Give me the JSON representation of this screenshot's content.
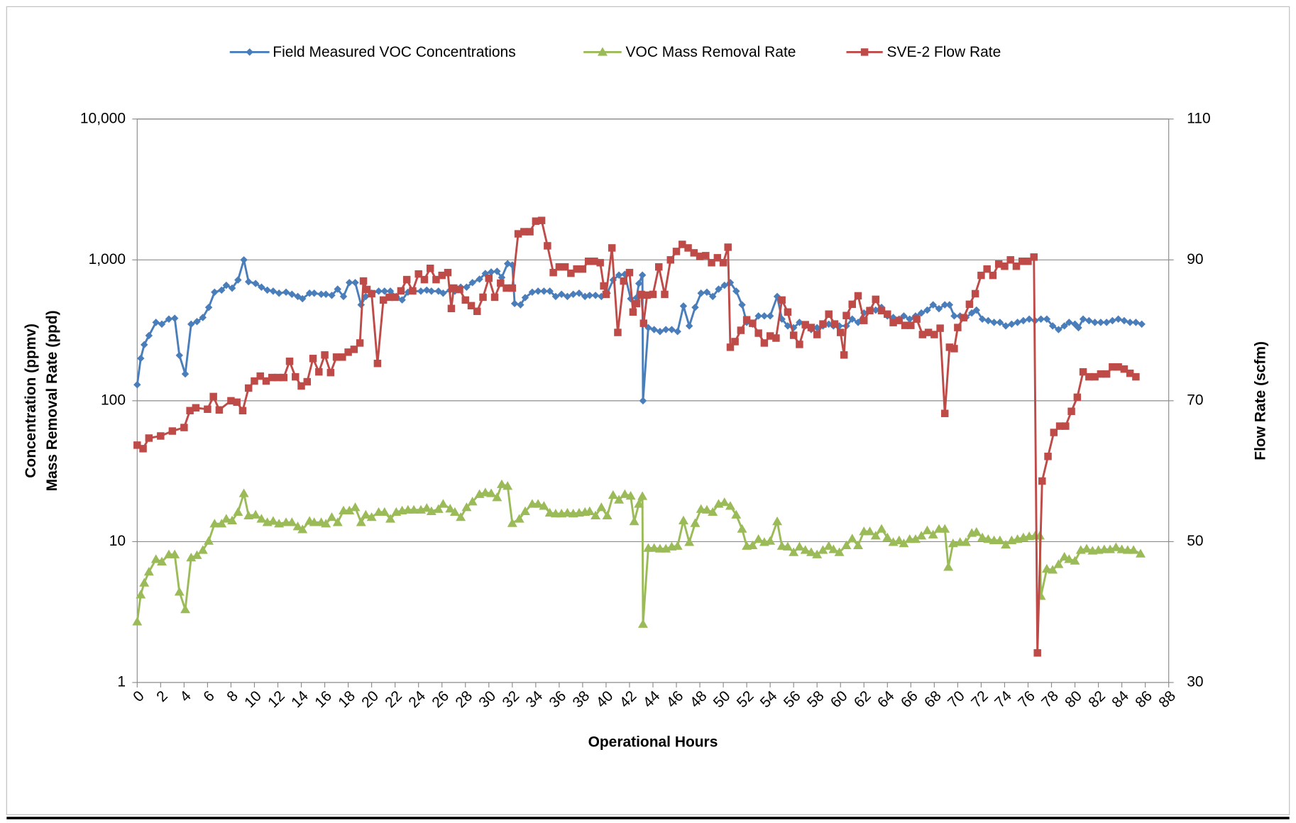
{
  "chart_data": {
    "type": "line",
    "x_label": "Operational Hours",
    "y_label": [
      "Concentration (ppmv)",
      "Mass Removal Rate (ppd)"
    ],
    "y2_label": "Flow Rate (scfm)",
    "xlim": [
      0,
      88
    ],
    "xticks": [
      0,
      2,
      4,
      6,
      8,
      10,
      12,
      14,
      16,
      18,
      20,
      22,
      24,
      26,
      28,
      30,
      32,
      34,
      36,
      38,
      40,
      42,
      44,
      46,
      48,
      50,
      52,
      54,
      56,
      58,
      60,
      62,
      64,
      66,
      68,
      70,
      72,
      74,
      76,
      78,
      80,
      82,
      84,
      86,
      88
    ],
    "ylim": [
      1,
      10000
    ],
    "yscale": "log",
    "yticks": [
      1,
      10,
      100,
      {
        "value": 1000,
        "label": "1,000"
      },
      {
        "value": 10000,
        "label": "10,000"
      }
    ],
    "y2lim": [
      30,
      110
    ],
    "y2ticks": [
      30,
      50,
      70,
      90,
      110
    ],
    "grid": true,
    "legend": "top",
    "series": [
      {
        "name": "Field Measured VOC Concentrations",
        "color": "#4a7ebb",
        "marker": "diamond",
        "x": [
          0,
          0.3,
          0.6,
          1.0,
          1.6,
          2.1,
          2.7,
          3.2,
          3.6,
          4.1,
          4.6,
          5.1,
          5.6,
          6.1,
          6.6,
          7.2,
          7.6,
          8.1,
          8.6,
          9.1,
          9.5,
          10.1,
          10.6,
          11.1,
          11.6,
          12.1,
          12.7,
          13.2,
          13.7,
          14.1,
          14.7,
          15.1,
          15.7,
          16.1,
          16.6,
          17.1,
          17.6,
          18.1,
          18.6,
          19.1,
          19.5,
          20.0,
          20.6,
          21.1,
          21.6,
          22.1,
          22.6,
          23.1,
          23.6,
          24.2,
          24.7,
          25.1,
          25.7,
          26.1,
          26.7,
          27.1,
          27.6,
          28.1,
          28.6,
          29.2,
          29.7,
          30.2,
          30.7,
          31.1,
          31.6,
          32.0,
          32.2,
          32.7,
          33.1,
          33.7,
          34.2,
          34.7,
          35.2,
          35.7,
          36.2,
          36.7,
          37.2,
          37.7,
          38.2,
          38.6,
          39.1,
          39.6,
          40.1,
          40.6,
          41.1,
          41.6,
          42.1,
          42.6,
          42.8,
          43.1,
          43.15,
          43.6,
          44.1,
          44.6,
          45.1,
          45.6,
          46.1,
          46.6,
          47.1,
          47.6,
          48.1,
          48.6,
          49.1,
          49.6,
          50.1,
          50.6,
          51.1,
          51.6,
          52.0,
          52.5,
          53.0,
          53.5,
          54.0,
          54.6,
          55.0,
          55.5,
          56.0,
          56.5,
          57.0,
          57.5,
          58.0,
          58.5,
          59.0,
          59.4,
          59.9,
          60.5,
          61.0,
          61.5,
          62.0,
          62.5,
          63.0,
          63.5,
          64.0,
          64.5,
          65.0,
          65.4,
          65.9,
          66.4,
          66.9,
          67.4,
          67.9,
          68.4,
          68.9,
          69.3,
          69.7,
          70.2,
          70.7,
          71.2,
          71.6,
          72.1,
          72.6,
          73.1,
          73.6,
          74.1,
          74.6,
          75.1,
          75.6,
          76.1,
          76.6,
          77.1,
          77.6,
          78.1,
          78.6,
          79.1,
          79.5,
          80.0,
          80.3,
          80.7,
          81.2,
          81.7,
          82.2,
          82.7,
          83.2,
          83.7,
          84.2,
          84.7,
          85.2,
          85.7
        ],
        "values": [
          130,
          200,
          250,
          290,
          360,
          350,
          380,
          385,
          210,
          155,
          350,
          365,
          390,
          460,
          590,
          610,
          660,
          630,
          720,
          1000,
          700,
          680,
          640,
          610,
          600,
          580,
          590,
          570,
          550,
          530,
          580,
          580,
          570,
          570,
          560,
          620,
          550,
          690,
          690,
          480,
          550,
          580,
          600,
          600,
          600,
          550,
          520,
          590,
          600,
          600,
          610,
          600,
          600,
          580,
          610,
          600,
          640,
          640,
          690,
          730,
          800,
          820,
          830,
          750,
          940,
          920,
          490,
          480,
          540,
          590,
          600,
          600,
          600,
          550,
          570,
          550,
          570,
          580,
          550,
          560,
          560,
          550,
          580,
          720,
          780,
          790,
          530,
          540,
          680,
          780,
          100,
          330,
          320,
          310,
          320,
          320,
          310,
          470,
          340,
          460,
          580,
          590,
          550,
          620,
          660,
          690,
          600,
          480,
          360,
          350,
          400,
          400,
          400,
          550,
          380,
          340,
          330,
          360,
          340,
          320,
          330,
          340,
          350,
          340,
          340,
          340,
          380,
          360,
          420,
          440,
          440,
          460,
          400,
          390,
          380,
          400,
          380,
          400,
          420,
          440,
          480,
          450,
          480,
          480,
          400,
          400,
          390,
          420,
          440,
          380,
          370,
          360,
          360,
          340,
          350,
          360,
          370,
          380,
          370,
          380,
          380,
          340,
          320,
          340,
          360,
          350,
          330,
          380,
          370,
          360,
          360,
          360,
          370,
          380,
          370,
          360,
          360,
          350
        ]
      },
      {
        "name": "VOC Mass Removal Rate",
        "color": "#9bbb59",
        "marker": "triangle",
        "x": [
          0,
          0.3,
          0.6,
          1.0,
          1.6,
          2.1,
          2.7,
          3.2,
          3.6,
          4.1,
          4.6,
          5.1,
          5.6,
          6.1,
          6.6,
          7.2,
          7.6,
          8.1,
          8.6,
          9.1,
          9.5,
          10.1,
          10.6,
          11.1,
          11.6,
          12.1,
          12.7,
          13.2,
          13.7,
          14.1,
          14.7,
          15.1,
          15.7,
          16.1,
          16.6,
          17.1,
          17.6,
          18.1,
          18.6,
          19.1,
          19.5,
          20.0,
          20.6,
          21.1,
          21.6,
          22.1,
          22.6,
          23.1,
          23.6,
          24.2,
          24.7,
          25.1,
          25.7,
          26.1,
          26.7,
          27.1,
          27.6,
          28.1,
          28.6,
          29.2,
          29.7,
          30.2,
          30.7,
          31.1,
          31.6,
          32.0,
          32.6,
          33.1,
          33.7,
          34.2,
          34.7,
          35.2,
          35.7,
          36.2,
          36.7,
          37.2,
          37.7,
          38.2,
          38.6,
          39.1,
          39.6,
          40.1,
          40.6,
          41.1,
          41.6,
          42.1,
          42.4,
          42.8,
          43.1,
          43.15,
          43.6,
          44.1,
          44.6,
          45.1,
          45.6,
          46.1,
          46.6,
          47.1,
          47.6,
          48.1,
          48.6,
          49.1,
          49.6,
          50.1,
          50.6,
          51.1,
          51.6,
          52.0,
          52.5,
          53.0,
          53.5,
          54.0,
          54.6,
          55.0,
          55.5,
          56.0,
          56.5,
          57.0,
          57.5,
          58.0,
          58.5,
          59.0,
          59.4,
          59.9,
          60.5,
          61.0,
          61.5,
          62.0,
          62.5,
          63.0,
          63.5,
          64.0,
          64.5,
          65.0,
          65.4,
          65.9,
          66.4,
          66.9,
          67.4,
          67.9,
          68.4,
          68.9,
          69.2,
          69.6,
          70.2,
          70.7,
          71.2,
          71.6,
          72.1,
          72.6,
          73.1,
          73.6,
          74.1,
          74.6,
          75.1,
          75.6,
          76.1,
          76.6,
          77.0,
          77.1,
          77.6,
          78.1,
          78.6,
          79.1,
          79.5,
          80.0,
          80.5,
          81.0,
          81.5,
          82.0,
          82.5,
          83.0,
          83.5,
          84.0,
          84.5,
          85.0,
          85.6
        ],
        "values": [
          2.7,
          4.2,
          5.1,
          6.1,
          7.5,
          7.2,
          8.1,
          8.1,
          4.4,
          3.3,
          7.7,
          8,
          8.7,
          10.1,
          13.4,
          13.4,
          14.5,
          14.1,
          16.2,
          22,
          15.3,
          15.5,
          14.5,
          13.7,
          14,
          13.4,
          13.7,
          13.7,
          12.8,
          12.2,
          14,
          13.7,
          13.7,
          13.4,
          14.9,
          13.7,
          16.6,
          16.6,
          17.5,
          13.7,
          15.5,
          14.9,
          16.2,
          16.2,
          14.5,
          16.2,
          16.6,
          16.8,
          16.8,
          16.8,
          17.3,
          16.4,
          17,
          18.5,
          17.1,
          16.2,
          14.9,
          17.5,
          19.2,
          21.7,
          22.3,
          22,
          20.6,
          25.5,
          24.8,
          13.5,
          14.5,
          16.4,
          18.5,
          18.5,
          17.9,
          16,
          15.8,
          15.8,
          16,
          15.8,
          16,
          16.2,
          16.4,
          15.3,
          17.5,
          15.3,
          21.4,
          19.8,
          21.7,
          21.1,
          13.9,
          18.5,
          21,
          2.6,
          9,
          9,
          8.9,
          8.9,
          9.2,
          9.3,
          14.1,
          9.9,
          13.5,
          17,
          16.8,
          16.2,
          18.5,
          19,
          17.9,
          15.5,
          12.3,
          9.3,
          9.4,
          10.4,
          9.9,
          10.1,
          13.9,
          9.3,
          9.2,
          8.4,
          9.2,
          8.7,
          8.4,
          8.1,
          8.7,
          9.3,
          8.8,
          8.4,
          9.4,
          10.5,
          9.4,
          11.8,
          11.8,
          11,
          12.3,
          10.7,
          9.9,
          10.2,
          9.7,
          10.4,
          10.4,
          11,
          12,
          11.2,
          12.3,
          12.3,
          6.6,
          9.7,
          9.9,
          9.9,
          11.5,
          11.7,
          10.7,
          10.4,
          10.2,
          10.2,
          9.5,
          10.2,
          10.4,
          10.7,
          10.9,
          11,
          11,
          4.1,
          6.4,
          6.3,
          6.9,
          7.8,
          7.5,
          7.3,
          8.7,
          8.9,
          8.6,
          8.7,
          8.8,
          8.8,
          9.1,
          8.8,
          8.7,
          8.7,
          8.2
        ]
      },
      {
        "name": "SVE-2 Flow Rate",
        "color": "#be4b48",
        "marker": "square",
        "axis": "y2",
        "x": [
          0,
          0.5,
          1,
          2,
          3,
          4,
          4.5,
          5,
          6,
          6.5,
          7,
          8,
          8.5,
          9,
          9.5,
          10,
          10.5,
          11,
          11.5,
          12,
          12.5,
          13,
          13.5,
          14,
          14.5,
          15,
          15.5,
          16,
          16.5,
          17,
          17.5,
          18,
          18.5,
          19,
          19.3,
          19.6,
          20,
          20.5,
          21,
          21.5,
          22,
          22.5,
          23,
          23.5,
          24,
          24.5,
          25,
          25.5,
          26,
          26.5,
          26.8,
          27,
          27.5,
          28,
          28.5,
          29,
          29.5,
          30,
          30.5,
          31,
          31.5,
          32,
          32.5,
          33,
          33.5,
          34,
          34.5,
          35,
          35.5,
          36,
          36.5,
          37,
          37.5,
          38,
          38.5,
          39,
          39.5,
          39.8,
          40,
          40.5,
          41,
          41.5,
          42,
          42.3,
          42.6,
          43,
          43.2,
          43.5,
          44,
          44.5,
          45,
          45.5,
          46,
          46.5,
          47,
          47.5,
          48,
          48.5,
          49,
          49.5,
          50,
          50.4,
          50.6,
          51,
          51.5,
          52,
          52.5,
          53,
          53.5,
          54,
          54.5,
          55,
          55.5,
          56,
          56.5,
          57,
          57.5,
          58,
          58.5,
          59,
          59.5,
          60,
          60.3,
          60.5,
          61,
          61.5,
          62,
          62.5,
          63,
          63.5,
          64,
          64.5,
          65,
          65.5,
          66,
          66.5,
          67,
          67.5,
          68,
          68.5,
          68.9,
          69.3,
          69.7,
          70,
          70.5,
          71,
          71.5,
          72,
          72.5,
          73,
          73.5,
          74,
          74.5,
          75,
          75.5,
          76,
          76.5,
          76.8,
          77.2,
          77.7,
          78.2,
          78.7,
          79.2,
          79.7,
          80.2,
          80.7,
          81.2,
          81.7,
          82.2,
          82.7,
          83.2,
          83.7,
          84.2,
          84.7,
          85.2
        ],
        "values": [
          63.7,
          63.2,
          64.7,
          65,
          65.7,
          66.2,
          68.6,
          69,
          68.8,
          70.6,
          68.7,
          70,
          69.8,
          68.6,
          71.8,
          72.8,
          73.5,
          72.8,
          73.3,
          73.3,
          73.3,
          75.6,
          73.4,
          72.1,
          72.7,
          76,
          74.1,
          76.5,
          74,
          76.2,
          76.2,
          76.9,
          77.3,
          78.2,
          87,
          85.8,
          85.2,
          75.3,
          84.3,
          84.7,
          84.7,
          85.6,
          87.2,
          85.6,
          88,
          87.2,
          88.8,
          87.2,
          87.8,
          88.2,
          83.1,
          86,
          85.8,
          84.3,
          83.5,
          82.7,
          84.7,
          87.4,
          84.7,
          86.7,
          86,
          86,
          93.7,
          94,
          94,
          95.5,
          95.6,
          92,
          88.2,
          89,
          89,
          88.1,
          88.7,
          88.7,
          89.8,
          89.8,
          89.6,
          86.3,
          85.1,
          91.7,
          79.7,
          87,
          88.2,
          82.6,
          83.8,
          85.1,
          81,
          85,
          85.1,
          89,
          85.1,
          90,
          91.2,
          92.2,
          91.7,
          91,
          90.5,
          90.6,
          89.6,
          90.3,
          89.6,
          91.8,
          77.6,
          78.4,
          80,
          81.5,
          81,
          79.6,
          78.2,
          79.2,
          78.9,
          84.3,
          82.6,
          79.3,
          78,
          80.8,
          80.4,
          79.4,
          80.9,
          82.3,
          80.9,
          79.7,
          76.5,
          82.1,
          83.7,
          84.9,
          81.4,
          82.8,
          84.4,
          82.8,
          82.3,
          81.1,
          81.4,
          80.7,
          80.7,
          81.6,
          79.4,
          79.7,
          79.4,
          80.3,
          68.2,
          77.6,
          77.4,
          80.4,
          81.8,
          83.7,
          85.2,
          87.8,
          88.7,
          87.8,
          89.4,
          89.1,
          90,
          89.1,
          89.8,
          89.8,
          90.4,
          34.2,
          58.6,
          62.1,
          65.5,
          66.4,
          66.4,
          68.5,
          70.5,
          74.1,
          73.4,
          73.4,
          73.8,
          73.8,
          74.8,
          74.8,
          74.5,
          73.9,
          73.4
        ]
      }
    ]
  }
}
